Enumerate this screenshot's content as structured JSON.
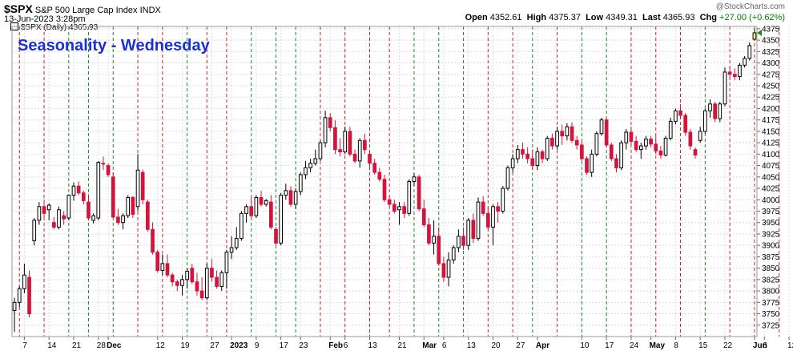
{
  "header": {
    "symbol": "$SPX",
    "description": "S&P 500 Large Cap Index",
    "exchange": "INDX",
    "datetime": "13-Jun-2023 3:28pm",
    "legend_label": "$SPX (Daily) 4365.93",
    "brand": "@StockCharts.com",
    "open_label": "Open",
    "open_value": "4352.61",
    "high_label": "High",
    "high_value": "4375.37",
    "low_label": "Low",
    "low_value": "4349.31",
    "last_label": "Last",
    "last_value": "4365.93",
    "chg_label": "Chg",
    "chg_value": "+27.00 (+0.62%)"
  },
  "chart_title": "Seasonality - Wednesday",
  "colors": {
    "up": "#ffffff",
    "down": "#d4143c",
    "title": "#1a2fd6",
    "green_line": "#1e8c1e",
    "red_line": "#d42020",
    "grid": "#dddddd"
  },
  "chart_data": {
    "type": "candlestick",
    "title": "Seasonality - Wednesday",
    "ylim": [
      3700,
      4380
    ],
    "y_ticks": [
      3725,
      3750,
      3775,
      3800,
      3825,
      3850,
      3875,
      3900,
      3925,
      3950,
      3975,
      4000,
      4025,
      4050,
      4075,
      4100,
      4125,
      4150,
      4175,
      4200,
      4225,
      4250,
      4275,
      4300,
      4325,
      4350,
      4375
    ],
    "x_tick_labels": [
      "7",
      "14",
      "21",
      "28",
      "Dec",
      "12",
      "19",
      "27",
      "2023",
      "9",
      "17",
      "23",
      "Feb",
      "6",
      "13",
      "21",
      "Mar",
      "6",
      "13",
      "20",
      "27",
      "Apr",
      "10",
      "17",
      "24",
      "May",
      "8",
      "15",
      "22",
      "Jun",
      "6",
      "12"
    ],
    "x_tick_bars": [
      2,
      7,
      12,
      17,
      19,
      29,
      34,
      40,
      44,
      49,
      54,
      58,
      64,
      67,
      72,
      78,
      83,
      87,
      92,
      97,
      102,
      106,
      115,
      120,
      125,
      129,
      134,
      139,
      144,
      150,
      152,
      157
    ],
    "bold_tick_labels": [
      "Dec",
      "2023",
      "Feb",
      "Mar",
      "Apr",
      "May",
      "Jun"
    ],
    "wednesday_lines": [
      {
        "bar": 1,
        "color": "red"
      },
      {
        "bar": 6,
        "color": "red"
      },
      {
        "bar": 11,
        "color": "green"
      },
      {
        "bar": 15,
        "color": "green"
      },
      {
        "bar": 20,
        "color": "green"
      },
      {
        "bar": 25,
        "color": "red"
      },
      {
        "bar": 30,
        "color": "red"
      },
      {
        "bar": 35,
        "color": "green"
      },
      {
        "bar": 39,
        "color": "red"
      },
      {
        "bar": 43,
        "color": "red"
      },
      {
        "bar": 48,
        "color": "green"
      },
      {
        "bar": 53,
        "color": "green"
      },
      {
        "bar": 57,
        "color": "green"
      },
      {
        "bar": 62,
        "color": "red"
      },
      {
        "bar": 67,
        "color": "red"
      },
      {
        "bar": 72,
        "color": "red"
      },
      {
        "bar": 76,
        "color": "red"
      },
      {
        "bar": 81,
        "color": "green"
      },
      {
        "bar": 86,
        "color": "green"
      },
      {
        "bar": 91,
        "color": "green"
      },
      {
        "bar": 96,
        "color": "red"
      },
      {
        "bar": 101,
        "color": "red"
      },
      {
        "bar": 105,
        "color": "green"
      },
      {
        "bar": 110,
        "color": "red"
      },
      {
        "bar": 115,
        "color": "green"
      },
      {
        "bar": 120,
        "color": "green"
      },
      {
        "bar": 125,
        "color": "red"
      },
      {
        "bar": 130,
        "color": "red"
      },
      {
        "bar": 135,
        "color": "red"
      },
      {
        "bar": 140,
        "color": "green"
      },
      {
        "bar": 145,
        "color": "red"
      },
      {
        "bar": 150,
        "color": "red"
      },
      {
        "bar": 155,
        "color": "red"
      }
    ],
    "ohlc": [
      [
        3757,
        3785,
        3710,
        3775
      ],
      [
        3775,
        3810,
        3765,
        3805
      ],
      [
        3805,
        3860,
        3795,
        3835
      ],
      [
        3830,
        3845,
        3742,
        3750
      ],
      [
        3910,
        3960,
        3900,
        3955
      ],
      [
        3955,
        3995,
        3945,
        3985
      ],
      [
        3985,
        4000,
        3960,
        3970
      ],
      [
        3978,
        3992,
        3955,
        3988
      ],
      [
        3950,
        3962,
        3935,
        3940
      ],
      [
        3940,
        3985,
        3935,
        3978
      ],
      [
        3965,
        3975,
        3945,
        3958
      ],
      [
        3960,
        4012,
        3955,
        4010
      ],
      [
        4010,
        4038,
        3998,
        4030
      ],
      [
        4030,
        4040,
        4010,
        4015
      ],
      [
        4015,
        4020,
        3990,
        3998
      ],
      [
        3995,
        4012,
        3955,
        3960
      ],
      [
        3955,
        3970,
        3948,
        3965
      ],
      [
        3960,
        4085,
        3955,
        4082
      ],
      [
        4080,
        4095,
        4065,
        4078
      ],
      [
        4075,
        4080,
        4050,
        4055
      ],
      [
        4050,
        4060,
        3960,
        3962
      ],
      [
        3962,
        3980,
        3945,
        3950
      ],
      [
        3950,
        3970,
        3935,
        3965
      ],
      [
        3965,
        4010,
        3960,
        4005
      ],
      [
        4005,
        4008,
        3960,
        3968
      ],
      [
        3985,
        4100,
        3975,
        4065
      ],
      [
        4060,
        4066,
        3990,
        4000
      ],
      [
        3995,
        4000,
        3930,
        3935
      ],
      [
        3935,
        3950,
        3880,
        3885
      ],
      [
        3885,
        3890,
        3840,
        3845
      ],
      [
        3845,
        3880,
        3835,
        3860
      ],
      [
        3860,
        3880,
        3830,
        3835
      ],
      [
        3835,
        3840,
        3810,
        3820
      ],
      [
        3820,
        3825,
        3800,
        3812
      ],
      [
        3812,
        3835,
        3790,
        3825
      ],
      [
        3825,
        3850,
        3805,
        3843
      ],
      [
        3850,
        3860,
        3815,
        3820
      ],
      [
        3820,
        3840,
        3790,
        3800
      ],
      [
        3800,
        3830,
        3780,
        3785
      ],
      [
        3785,
        3860,
        3780,
        3850
      ],
      [
        3850,
        3870,
        3820,
        3830
      ],
      [
        3830,
        3845,
        3805,
        3810
      ],
      [
        3810,
        3845,
        3800,
        3840
      ],
      [
        3840,
        3890,
        3805,
        3885
      ],
      [
        3885,
        3920,
        3870,
        3895
      ],
      [
        3895,
        3940,
        3890,
        3915
      ],
      [
        3915,
        3975,
        3910,
        3970
      ],
      [
        3970,
        3990,
        3950,
        3985
      ],
      [
        3985,
        4005,
        3960,
        3965
      ],
      [
        3965,
        4010,
        3960,
        4005
      ],
      [
        4005,
        4020,
        3985,
        3990
      ],
      [
        3990,
        4002,
        3985,
        3998
      ],
      [
        3995,
        4010,
        3935,
        3940
      ],
      [
        3935,
        3940,
        3900,
        3905
      ],
      [
        3905,
        4015,
        3900,
        4010
      ],
      [
        4010,
        4035,
        4000,
        4020
      ],
      [
        4020,
        4030,
        3985,
        3990
      ],
      [
        3990,
        4025,
        3980,
        4018
      ],
      [
        4018,
        4060,
        4010,
        4055
      ],
      [
        4055,
        4085,
        4045,
        4070
      ],
      [
        4070,
        4090,
        4060,
        4080
      ],
      [
        4080,
        4110,
        4075,
        4090
      ],
      [
        4090,
        4130,
        4085,
        4125
      ],
      [
        4125,
        4195,
        4115,
        4180
      ],
      [
        4180,
        4190,
        4150,
        4158
      ],
      [
        4158,
        4175,
        4100,
        4110
      ],
      [
        4110,
        4135,
        4095,
        4105
      ],
      [
        4105,
        4160,
        4100,
        4150
      ],
      [
        4150,
        4160,
        4095,
        4100
      ],
      [
        4100,
        4110,
        4080,
        4085
      ],
      [
        4085,
        4135,
        4070,
        4130
      ],
      [
        4130,
        4145,
        4100,
        4110
      ],
      [
        4100,
        4105,
        4070,
        4080
      ],
      [
        4080,
        4090,
        4055,
        4060
      ],
      [
        4060,
        4070,
        4040,
        4045
      ],
      [
        4045,
        4055,
        3995,
        4000
      ],
      [
        4000,
        4008,
        3985,
        3990
      ],
      [
        3990,
        4000,
        3970,
        3975
      ],
      [
        3978,
        3995,
        3945,
        3985
      ],
      [
        3985,
        3995,
        3960,
        3970
      ],
      [
        3970,
        4045,
        3965,
        4040
      ],
      [
        4040,
        4058,
        4030,
        4050
      ],
      [
        4050,
        4055,
        3975,
        3980
      ],
      [
        3980,
        4000,
        3940,
        3945
      ],
      [
        3945,
        3960,
        3900,
        3905
      ],
      [
        3905,
        3955,
        3880,
        3920
      ],
      [
        3920,
        3940,
        3855,
        3860
      ],
      [
        3860,
        3875,
        3820,
        3830
      ],
      [
        3830,
        3885,
        3810,
        3868
      ],
      [
        3868,
        3900,
        3860,
        3895
      ],
      [
        3895,
        3935,
        3885,
        3920
      ],
      [
        3920,
        3940,
        3890,
        3900
      ],
      [
        3900,
        3960,
        3890,
        3955
      ],
      [
        3955,
        3970,
        3905,
        3915
      ],
      [
        3915,
        4005,
        3910,
        3995
      ],
      [
        3995,
        4008,
        3965,
        3970
      ],
      [
        3970,
        3985,
        3935,
        3940
      ],
      [
        3940,
        3990,
        3900,
        3985
      ],
      [
        3985,
        3995,
        3950,
        3975
      ],
      [
        3975,
        4030,
        3970,
        4025
      ],
      [
        4025,
        4075,
        4020,
        4070
      ],
      [
        4070,
        4100,
        4060,
        4090
      ],
      [
        4090,
        4120,
        4080,
        4110
      ],
      [
        4110,
        4125,
        4090,
        4100
      ],
      [
        4100,
        4115,
        4080,
        4090
      ],
      [
        4090,
        4110,
        4065,
        4075
      ],
      [
        4075,
        4115,
        4065,
        4105
      ],
      [
        4105,
        4110,
        4080,
        4090
      ],
      [
        4090,
        4140,
        4085,
        4135
      ],
      [
        4135,
        4145,
        4110,
        4118
      ],
      [
        4118,
        4160,
        4110,
        4150
      ],
      [
        4150,
        4165,
        4120,
        4140
      ],
      [
        4140,
        4168,
        4130,
        4160
      ],
      [
        4160,
        4170,
        4125,
        4130
      ],
      [
        4130,
        4140,
        4110,
        4120
      ],
      [
        4120,
        4128,
        4085,
        4090
      ],
      [
        4090,
        4095,
        4055,
        4060
      ],
      [
        4060,
        4110,
        4050,
        4100
      ],
      [
        4100,
        4150,
        4095,
        4145
      ],
      [
        4145,
        4180,
        4140,
        4175
      ],
      [
        4175,
        4180,
        4115,
        4120
      ],
      [
        4120,
        4125,
        4085,
        4090
      ],
      [
        4090,
        4100,
        4060,
        4070
      ],
      [
        4070,
        4130,
        4065,
        4125
      ],
      [
        4125,
        4155,
        4110,
        4148
      ],
      [
        4148,
        4160,
        4120,
        4128
      ],
      [
        4128,
        4140,
        4105,
        4110
      ],
      [
        4110,
        4125,
        4090,
        4118
      ],
      [
        4118,
        4140,
        4110,
        4133
      ],
      [
        4133,
        4140,
        4115,
        4122
      ],
      [
        4122,
        4140,
        4100,
        4107
      ],
      [
        4107,
        4118,
        4090,
        4098
      ],
      [
        4098,
        4140,
        4095,
        4135
      ],
      [
        4135,
        4180,
        4130,
        4172
      ],
      [
        4172,
        4200,
        4165,
        4195
      ],
      [
        4195,
        4210,
        4180,
        4185
      ],
      [
        4185,
        4190,
        4140,
        4148
      ],
      [
        4148,
        4155,
        4110,
        4118
      ],
      [
        4110,
        4115,
        4090,
        4098
      ],
      [
        4130,
        4160,
        4125,
        4150
      ],
      [
        4150,
        4200,
        4145,
        4195
      ],
      [
        4195,
        4220,
        4180,
        4210
      ],
      [
        4210,
        4215,
        4170,
        4178
      ],
      [
        4178,
        4215,
        4170,
        4210
      ],
      [
        4210,
        4290,
        4205,
        4280
      ],
      [
        4280,
        4292,
        4265,
        4275
      ],
      [
        4275,
        4288,
        4262,
        4270
      ],
      [
        4270,
        4300,
        4262,
        4295
      ],
      [
        4295,
        4315,
        4290,
        4310
      ],
      [
        4310,
        4345,
        4305,
        4338
      ],
      [
        4352,
        4375,
        4349,
        4366
      ]
    ]
  }
}
